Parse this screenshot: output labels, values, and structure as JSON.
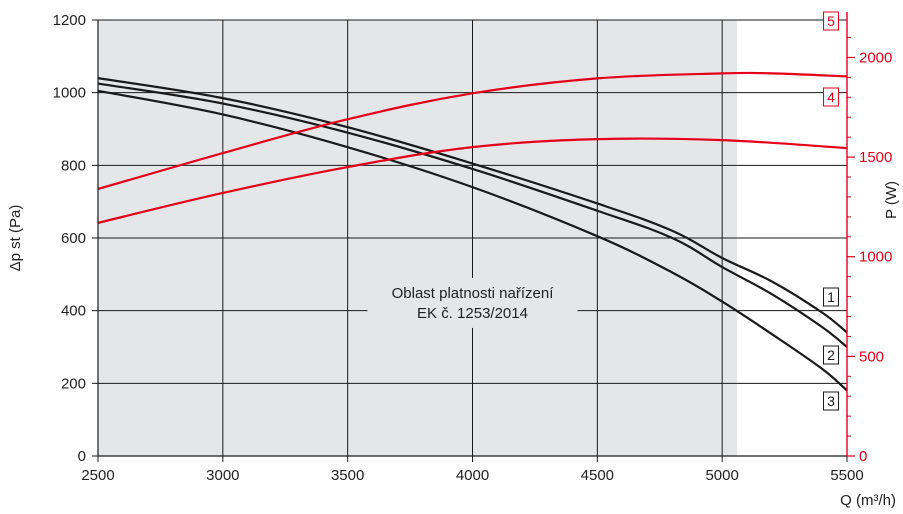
{
  "chart_data": {
    "type": "line",
    "x_axis": {
      "label": "Q (m³/h)",
      "range": [
        2500,
        5500
      ],
      "ticks": [
        2500,
        3000,
        3500,
        4000,
        4500,
        5000,
        5500
      ]
    },
    "y_axis_left": {
      "label": "Δp  st  (Pa)",
      "range": [
        0,
        1200
      ],
      "ticks": [
        0,
        200,
        400,
        600,
        800,
        1000,
        1200
      ]
    },
    "y_axis_right": {
      "label": "P (W)",
      "range": [
        0,
        2188
      ],
      "ticks": [
        0,
        500,
        1000,
        1500,
        2000
      ],
      "color": "#e3001b"
    },
    "grid": true,
    "shaded_region": {
      "x_range": [
        2500,
        5060
      ],
      "color": "#e5e6e8",
      "annotation": [
        "Oblast platnosti nařízení",
        "EK č. 1253/2014"
      ],
      "annotation_x": 4000,
      "annotation_y": [
        435,
        380
      ]
    },
    "pressure_series": [
      {
        "name": "1",
        "color": "#1a1a1a",
        "axis": "left",
        "x": [
          2500,
          3000,
          3500,
          4000,
          4500,
          4800,
          5000,
          5200,
          5400,
          5500
        ],
        "y": [
          1040,
          985,
          905,
          805,
          695,
          620,
          545,
          480,
          395,
          340
        ]
      },
      {
        "name": "2",
        "color": "#1a1a1a",
        "axis": "left",
        "x": [
          2500,
          3000,
          3500,
          4000,
          4500,
          4800,
          5000,
          5200,
          5400,
          5500
        ],
        "y": [
          1025,
          970,
          890,
          790,
          675,
          600,
          520,
          445,
          355,
          300
        ]
      },
      {
        "name": "3",
        "color": "#1a1a1a",
        "axis": "left",
        "x": [
          2500,
          3000,
          3500,
          4000,
          4500,
          4800,
          5000,
          5200,
          5400,
          5500
        ],
        "y": [
          1005,
          940,
          850,
          740,
          605,
          505,
          425,
          335,
          240,
          180
        ]
      }
    ],
    "power_series": [
      {
        "name": "5",
        "color": "#e3001b",
        "axis": "right",
        "x": [
          2500,
          3000,
          3500,
          4000,
          4500,
          5000,
          5200,
          5500
        ],
        "y": [
          1340,
          1520,
          1690,
          1820,
          1895,
          1920,
          1920,
          1905
        ]
      },
      {
        "name": "4",
        "color": "#e3001b",
        "axis": "right",
        "x": [
          2500,
          3000,
          3500,
          4000,
          4500,
          5000,
          5500
        ],
        "y": [
          1170,
          1320,
          1450,
          1550,
          1590,
          1585,
          1545
        ]
      }
    ],
    "curve_labels": [
      {
        "text": "1",
        "color": "#1a1a1a"
      },
      {
        "text": "2",
        "color": "#1a1a1a"
      },
      {
        "text": "3",
        "color": "#1a1a1a"
      },
      {
        "text": "4",
        "color": "#e3001b"
      },
      {
        "text": "5",
        "color": "#e3001b"
      }
    ]
  }
}
